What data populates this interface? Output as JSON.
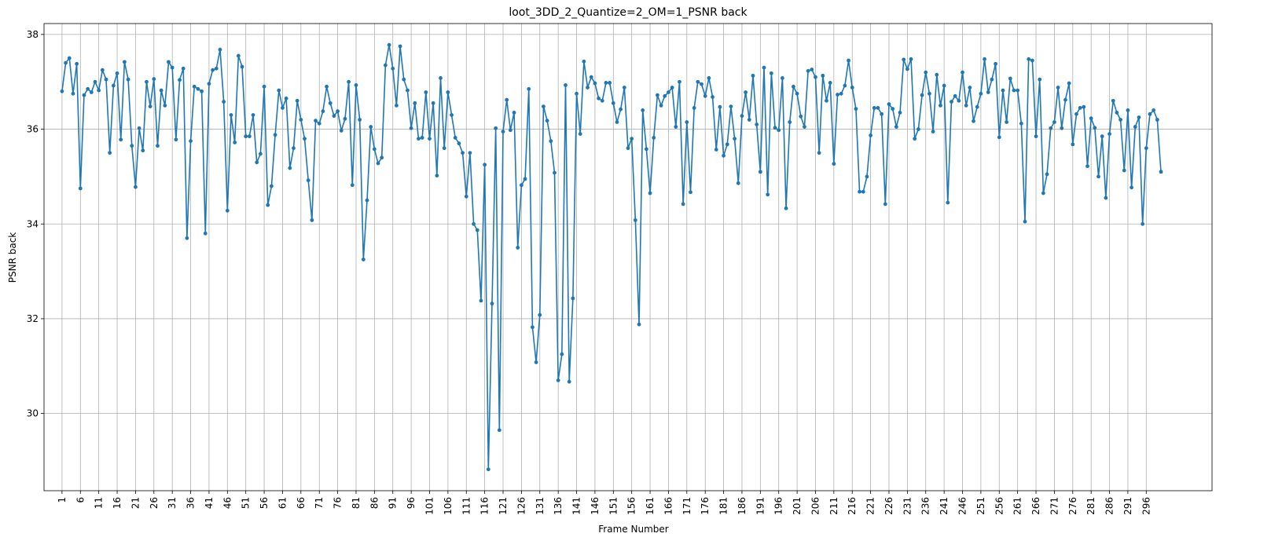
{
  "chart_data": {
    "type": "line",
    "title": "loot_3DD_2_Quantize=2_OM=1_PSNR back",
    "xlabel": "Frame Number",
    "ylabel": "PSNR back",
    "xlim": [
      -3.9,
      313.9
    ],
    "ylim": [
      28.37,
      38.23
    ],
    "xticks": [
      1,
      6,
      11,
      16,
      21,
      26,
      31,
      36,
      41,
      46,
      51,
      56,
      61,
      66,
      71,
      76,
      81,
      86,
      91,
      96,
      101,
      106,
      111,
      116,
      121,
      126,
      131,
      136,
      141,
      146,
      151,
      156,
      161,
      166,
      171,
      176,
      181,
      186,
      191,
      196,
      201,
      206,
      211,
      216,
      221,
      226,
      231,
      236,
      241,
      246,
      251,
      256,
      261,
      266,
      271,
      276,
      281,
      286,
      291,
      296
    ],
    "yticks": [
      30,
      32,
      34,
      36,
      38
    ],
    "grid": true,
    "x_start": 1,
    "color": "#1f77b4",
    "series": [
      {
        "values": [
          36.8,
          37.4,
          37.5,
          36.75,
          37.38,
          34.75,
          36.72,
          36.85,
          36.78,
          37.0,
          36.82,
          37.25,
          37.05,
          35.5,
          36.92,
          37.18,
          35.78,
          37.42,
          37.05,
          35.65,
          34.78,
          36.02,
          35.55,
          37.0,
          36.48,
          37.06,
          35.65,
          36.82,
          36.5,
          37.42,
          37.3,
          35.78,
          37.04,
          37.28,
          33.7,
          35.75,
          36.9,
          36.85,
          36.8,
          33.8,
          36.96,
          37.25,
          37.28,
          37.68,
          36.58,
          34.28,
          36.3,
          35.72,
          37.55,
          37.32,
          35.85,
          35.85,
          36.3,
          35.3,
          35.48,
          36.9,
          34.4,
          34.8,
          35.88,
          36.82,
          36.45,
          36.65,
          35.18,
          35.6,
          36.6,
          36.2,
          35.8,
          34.92,
          34.08,
          36.18,
          36.12,
          36.38,
          36.9,
          36.55,
          36.28,
          36.38,
          35.97,
          36.22,
          37.0,
          34.82,
          36.93,
          36.2,
          33.25,
          34.5,
          36.05,
          35.58,
          35.28,
          35.4,
          37.35,
          37.78,
          37.28,
          36.5,
          37.75,
          37.05,
          36.82,
          36.02,
          36.55,
          35.8,
          35.82,
          36.78,
          35.8,
          36.55,
          35.02,
          37.08,
          35.6,
          36.78,
          36.3,
          35.82,
          35.7,
          35.5,
          34.58,
          35.5,
          34.0,
          33.87,
          32.38,
          35.25,
          28.82,
          32.32,
          36.02,
          29.65,
          35.95,
          36.62,
          35.98,
          36.35,
          33.5,
          34.82,
          34.95,
          36.85,
          31.82,
          31.08,
          32.08,
          36.48,
          36.18,
          35.75,
          35.08,
          30.7,
          31.25,
          36.93,
          30.67,
          32.43,
          36.75,
          35.9,
          37.43,
          36.88,
          37.1,
          36.97,
          36.65,
          36.6,
          36.98,
          36.98,
          36.55,
          36.15,
          36.42,
          36.88,
          35.6,
          35.8,
          34.08,
          31.88,
          36.4,
          35.58,
          34.65,
          35.82,
          36.72,
          36.5,
          36.7,
          36.78,
          36.88,
          36.05,
          37.0,
          34.42,
          36.15,
          34.67,
          36.45,
          37.0,
          36.95,
          36.7,
          37.08,
          36.68,
          35.57,
          36.47,
          35.44,
          35.68,
          36.48,
          35.8,
          34.86,
          36.28,
          36.78,
          36.2,
          37.13,
          36.1,
          35.1,
          37.3,
          34.62,
          37.18,
          36.03,
          35.98,
          37.08,
          34.33,
          36.15,
          36.9,
          36.75,
          36.27,
          36.05,
          37.23,
          37.26,
          37.1,
          35.5,
          37.13,
          36.6,
          36.98,
          35.27,
          36.73,
          36.75,
          36.92,
          37.45,
          36.88,
          36.43,
          34.68,
          34.68,
          35.0,
          35.87,
          36.45,
          36.45,
          36.32,
          34.42,
          36.53,
          36.43,
          36.05,
          36.35,
          37.47,
          37.27,
          37.48,
          35.8,
          36.0,
          36.72,
          37.2,
          36.75,
          35.95,
          37.15,
          36.5,
          36.92,
          34.45,
          36.58,
          36.7,
          36.6,
          37.2,
          36.5,
          36.88,
          36.17,
          36.47,
          36.75,
          37.48,
          36.78,
          37.05,
          37.38,
          35.83,
          36.82,
          36.15,
          37.07,
          36.82,
          36.82,
          36.12,
          34.05,
          37.48,
          37.45,
          35.85,
          37.05,
          34.65,
          35.05,
          36.02,
          36.15,
          36.88,
          36.02,
          36.62,
          36.97,
          35.68,
          36.32,
          36.45,
          36.47,
          35.22,
          36.23,
          36.03,
          35.0,
          35.85,
          34.55,
          35.9,
          36.6,
          36.35,
          36.2,
          35.13,
          36.4,
          34.77,
          36.05,
          36.25,
          34.0,
          35.6,
          36.32,
          36.4,
          36.2,
          35.1
        ]
      }
    ]
  }
}
